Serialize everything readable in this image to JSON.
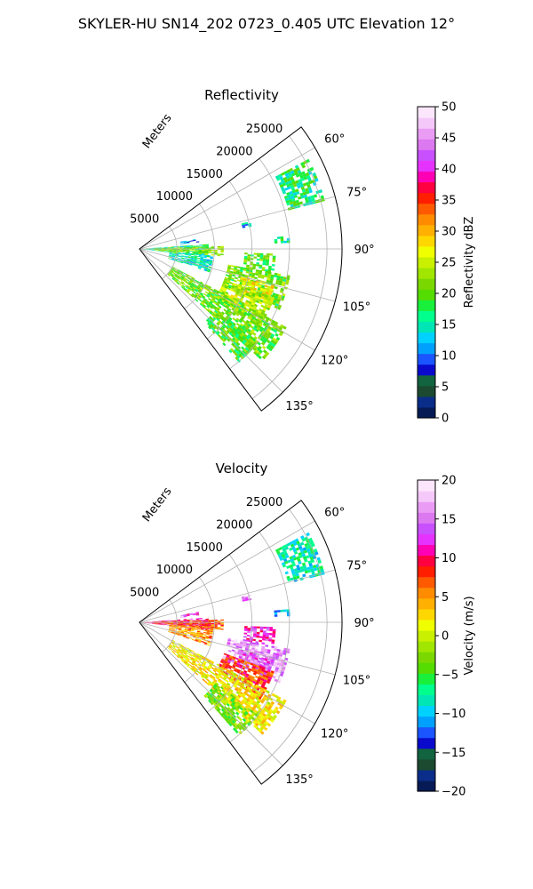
{
  "figure": {
    "suptitle": "SKYLER-HU  SN14_202  0723_0.405 UTC Elevation 12°"
  },
  "chart_data": [
    {
      "type": "heatmap",
      "projection": "polar-sector",
      "title": "Reflectivity",
      "radial_label": "Meters",
      "radial_ticks": [
        5000,
        10000,
        15000,
        20000,
        25000
      ],
      "rlim": [
        0,
        27000
      ],
      "azimuth_range_deg": [
        53,
        143
      ],
      "azimuth_ticks": [
        "60°",
        "75°",
        "90°",
        "105°",
        "120°",
        "135°"
      ],
      "azimuth_tick_values": [
        60,
        75,
        90,
        105,
        120,
        135
      ],
      "grid": true,
      "colorbar": {
        "label": "Reflectivity dBZ",
        "range": [
          0,
          50
        ],
        "ticks": [
          "0",
          "5",
          "10",
          "15",
          "20",
          "25",
          "30",
          "35",
          "40",
          "45",
          "50"
        ],
        "tick_values": [
          0,
          5,
          10,
          15,
          20,
          25,
          30,
          35,
          40,
          45,
          50
        ],
        "colors": [
          "#061a55",
          "#0b2d8a",
          "#1b4a30",
          "#12633f",
          "#0a0acc",
          "#1a55ff",
          "#00a0ff",
          "#00d2ff",
          "#00e6b4",
          "#00ff8c",
          "#19f03c",
          "#55dc00",
          "#7ad800",
          "#a0e600",
          "#c8f000",
          "#f0ff00",
          "#ffd700",
          "#ffb000",
          "#ff8c00",
          "#ff5a00",
          "#ff1e00",
          "#ff0040",
          "#ff00b4",
          "#e632ff",
          "#c850ff",
          "#dc78f0",
          "#ea9cf5",
          "#f5c8fa",
          "#fbe6fc"
        ]
      },
      "echo_regions": [
        {
          "az": [
            86,
            96
          ],
          "r": [
            0,
            9000
          ],
          "dbz": 16
        },
        {
          "az": [
            88,
            95
          ],
          "r": [
            2000,
            11000
          ],
          "dbz": 22
        },
        {
          "az": [
            80,
            83
          ],
          "r": [
            5500,
            8000
          ],
          "dbz": 11
        },
        {
          "az": [
            95,
            108
          ],
          "r": [
            4000,
            9500
          ],
          "dbz": 15
        },
        {
          "az": [
            92,
            100
          ],
          "r": [
            14000,
            18000
          ],
          "dbz": 20
        },
        {
          "az": [
            100,
            113
          ],
          "r": [
            12000,
            20000
          ],
          "dbz": 21
        },
        {
          "az": [
            105,
            112
          ],
          "r": [
            14000,
            18500
          ],
          "dbz": 27
        },
        {
          "az": [
            110,
            122
          ],
          "r": [
            12000,
            19000
          ],
          "dbz": 24
        },
        {
          "az": [
            118,
            132
          ],
          "r": [
            5000,
            22000
          ],
          "dbz": 21
        },
        {
          "az": [
            128,
            138
          ],
          "r": [
            13000,
            20000
          ],
          "dbz": 20
        },
        {
          "az": [
            62,
            75
          ],
          "r": [
            20500,
            25500
          ],
          "dbz": 17
        },
        {
          "az": [
            85,
            87
          ],
          "r": [
            18000,
            20000
          ],
          "dbz": 17
        },
        {
          "az": [
            76,
            78
          ],
          "r": [
            14000,
            15000
          ],
          "dbz": 13
        }
      ]
    },
    {
      "type": "heatmap",
      "projection": "polar-sector",
      "title": "Velocity",
      "radial_label": "Meters",
      "radial_ticks": [
        5000,
        10000,
        15000,
        20000,
        25000
      ],
      "rlim": [
        0,
        27000
      ],
      "azimuth_range_deg": [
        53,
        143
      ],
      "azimuth_ticks": [
        "60°",
        "75°",
        "90°",
        "105°",
        "120°",
        "135°"
      ],
      "azimuth_tick_values": [
        60,
        75,
        90,
        105,
        120,
        135
      ],
      "grid": true,
      "colorbar": {
        "label": "Velocity (m/s)",
        "range": [
          -20,
          20
        ],
        "ticks": [
          "−20",
          "−15",
          "−10",
          "−5",
          "0",
          "5",
          "10",
          "15",
          "20"
        ],
        "tick_values": [
          -20,
          -15,
          -10,
          -5,
          0,
          5,
          10,
          15,
          20
        ],
        "colors": [
          "#061a55",
          "#0b2d8a",
          "#1b4a30",
          "#12633f",
          "#0a0acc",
          "#1a55ff",
          "#00a0ff",
          "#00d2ff",
          "#00e6b4",
          "#00ff8c",
          "#19f03c",
          "#55dc00",
          "#7ad800",
          "#a0e600",
          "#c8f000",
          "#f0ff00",
          "#ffd700",
          "#ffb000",
          "#ff8c00",
          "#ff5a00",
          "#ff1e00",
          "#ff0040",
          "#ff00b4",
          "#e632ff",
          "#c850ff",
          "#dc78f0",
          "#ea9cf5",
          "#f5c8fa",
          "#fbe6fc"
        ]
      },
      "echo_regions": [
        {
          "az": [
            86,
            96
          ],
          "r": [
            0,
            9000
          ],
          "vel": 11
        },
        {
          "az": [
            88,
            95
          ],
          "r": [
            2000,
            11000
          ],
          "vel": 7
        },
        {
          "az": [
            80,
            83
          ],
          "r": [
            5500,
            8000
          ],
          "vel": 13
        },
        {
          "az": [
            95,
            108
          ],
          "r": [
            4000,
            9500
          ],
          "vel": 5
        },
        {
          "az": [
            92,
            100
          ],
          "r": [
            14000,
            18000
          ],
          "vel": 12
        },
        {
          "az": [
            100,
            113
          ],
          "r": [
            12000,
            20000
          ],
          "vel": 16
        },
        {
          "az": [
            105,
            112
          ],
          "r": [
            14000,
            18500
          ],
          "vel": 14
        },
        {
          "az": [
            110,
            122
          ],
          "r": [
            12000,
            19000
          ],
          "vel": 8
        },
        {
          "az": [
            118,
            132
          ],
          "r": [
            5000,
            22000
          ],
          "vel": 2
        },
        {
          "az": [
            128,
            138
          ],
          "r": [
            13000,
            20000
          ],
          "vel": -3
        },
        {
          "az": [
            62,
            75
          ],
          "r": [
            20500,
            25500
          ],
          "vel": -8
        },
        {
          "az": [
            85,
            87
          ],
          "r": [
            18000,
            20000
          ],
          "vel": -10
        },
        {
          "az": [
            76,
            78
          ],
          "r": [
            14000,
            15000
          ],
          "vel": 15
        }
      ]
    }
  ]
}
